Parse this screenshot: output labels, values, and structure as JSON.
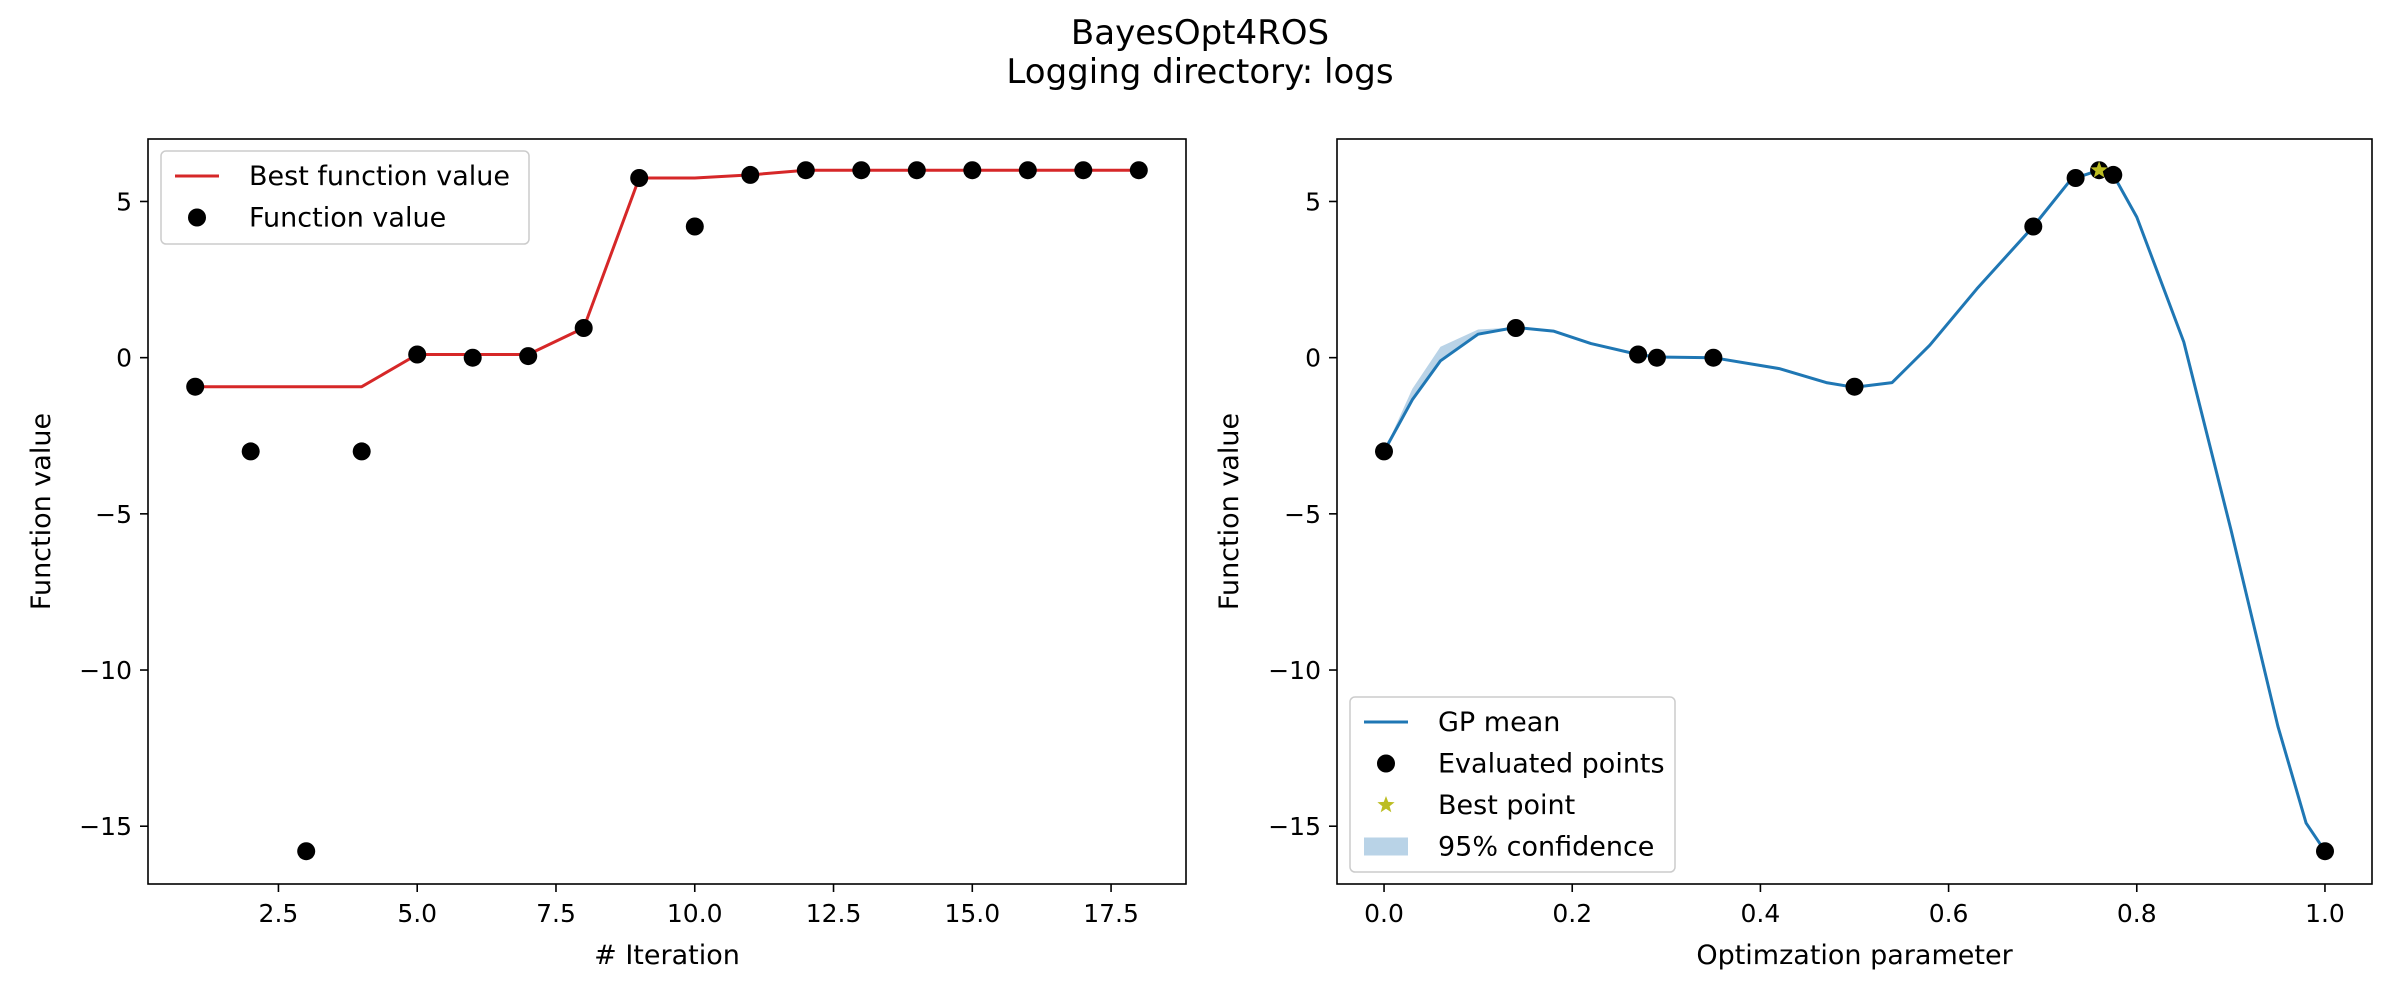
{
  "figure": {
    "title": "BayesOpt4ROS",
    "subtitle": "Logging directory: logs"
  },
  "chart_data": [
    {
      "type": "line",
      "xlabel": "# Iteration",
      "ylabel": "Function value",
      "xlim": [
        0.15,
        18.85
      ],
      "ylim": [
        -16.85,
        7.0
      ],
      "xticks": [
        2.5,
        5.0,
        7.5,
        10.0,
        12.5,
        15.0,
        17.5
      ],
      "xtick_labels": [
        "2.5",
        "5.0",
        "7.5",
        "10.0",
        "12.5",
        "15.0",
        "17.5"
      ],
      "yticks": [
        5,
        0,
        -5,
        -10,
        -15
      ],
      "ytick_labels": [
        "5",
        "0",
        "−5",
        "−10",
        "−15"
      ],
      "legend_position": "upper-left",
      "series": [
        {
          "name": "Best function value",
          "kind": "line",
          "color": "#d62728",
          "x": [
            1,
            2,
            3,
            4,
            5,
            6,
            7,
            8,
            9,
            10,
            11,
            12,
            13,
            14,
            15,
            16,
            17,
            18
          ],
          "y": [
            -0.93,
            -0.93,
            -0.93,
            -0.93,
            0.1,
            0.1,
            0.1,
            0.95,
            5.75,
            5.75,
            5.85,
            6.0,
            6.0,
            6.0,
            6.0,
            6.0,
            6.0,
            6.0
          ]
        },
        {
          "name": "Function value",
          "kind": "scatter",
          "color": "#000000",
          "x": [
            1,
            2,
            3,
            4,
            5,
            6,
            7,
            8,
            9,
            10,
            11,
            12,
            13,
            14,
            15,
            16,
            17,
            18
          ],
          "y": [
            -0.93,
            -3.0,
            -15.8,
            -3.0,
            0.1,
            0.0,
            0.05,
            0.95,
            5.75,
            4.2,
            5.85,
            6.0,
            6.0,
            6.0,
            6.0,
            6.0,
            6.0,
            6.0
          ]
        }
      ]
    },
    {
      "type": "line",
      "xlabel": "Optimzation parameter",
      "ylabel": "Function value",
      "xlim": [
        -0.05,
        1.05
      ],
      "ylim": [
        -16.85,
        7.0
      ],
      "xticks": [
        0.0,
        0.2,
        0.4,
        0.6,
        0.8,
        1.0
      ],
      "xtick_labels": [
        "0.0",
        "0.2",
        "0.4",
        "0.6",
        "0.8",
        "1.0"
      ],
      "yticks": [
        5,
        0,
        -5,
        -10,
        -15
      ],
      "ytick_labels": [
        "5",
        "0",
        "−5",
        "−10",
        "−15"
      ],
      "legend_position": "lower-left",
      "series": [
        {
          "name": "GP mean",
          "kind": "line",
          "color": "#1f77b4",
          "x": [
            0.0,
            0.03,
            0.06,
            0.1,
            0.14,
            0.18,
            0.22,
            0.27,
            0.29,
            0.35,
            0.42,
            0.47,
            0.5,
            0.54,
            0.58,
            0.63,
            0.69,
            0.73,
            0.76,
            0.775,
            0.8,
            0.85,
            0.9,
            0.95,
            0.98,
            1.0
          ],
          "y": [
            -3.0,
            -1.35,
            -0.1,
            0.75,
            0.97,
            0.85,
            0.45,
            0.1,
            0.02,
            0.0,
            -0.35,
            -0.8,
            -0.95,
            -0.8,
            0.4,
            2.2,
            4.2,
            5.7,
            6.0,
            5.85,
            4.5,
            0.5,
            -5.5,
            -11.8,
            -14.9,
            -15.8
          ]
        },
        {
          "name": "Evaluated points",
          "kind": "scatter",
          "color": "#000000",
          "x": [
            0.0,
            0.14,
            0.27,
            0.29,
            0.35,
            0.5,
            0.69,
            0.735,
            0.76,
            0.775,
            1.0
          ],
          "y": [
            -3.0,
            0.95,
            0.1,
            0.0,
            0.0,
            -0.93,
            4.2,
            5.75,
            6.0,
            5.85,
            -15.8
          ]
        },
        {
          "name": "Best point",
          "kind": "star",
          "color": "#bcbd22",
          "x": [
            0.76
          ],
          "y": [
            6.0
          ]
        },
        {
          "name": "95% confidence",
          "kind": "band",
          "color": "#b9d3e7",
          "x": [
            0.0,
            0.03,
            0.06,
            0.1,
            0.14
          ],
          "lower": [
            -3.0,
            -1.35,
            -0.1,
            0.75,
            0.97
          ],
          "upper": [
            -3.0,
            -1.0,
            0.35,
            0.9,
            0.97
          ]
        }
      ]
    }
  ]
}
